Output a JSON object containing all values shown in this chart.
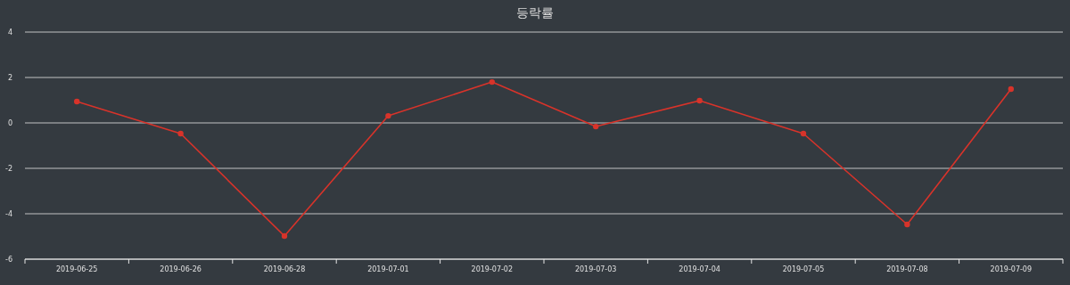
{
  "chart_data": {
    "type": "line",
    "title": "등락률",
    "categories": [
      "2019-06-25",
      "2019-06-26",
      "2019-06-28",
      "2019-07-01",
      "2019-07-02",
      "2019-07-03",
      "2019-07-04",
      "2019-07-05",
      "2019-07-08",
      "2019-07-09"
    ],
    "series": [
      {
        "color": "#d8332a",
        "values": [
          0.94,
          -0.47,
          -4.98,
          0.31,
          1.8,
          -0.16,
          0.98,
          -0.47,
          -4.47,
          1.49
        ]
      }
    ],
    "ylim": [
      -6,
      4
    ],
    "yticks": [
      -6,
      -4,
      -2,
      0,
      2,
      4
    ],
    "grid": "y",
    "marker": "circle",
    "line_style": "solid"
  }
}
